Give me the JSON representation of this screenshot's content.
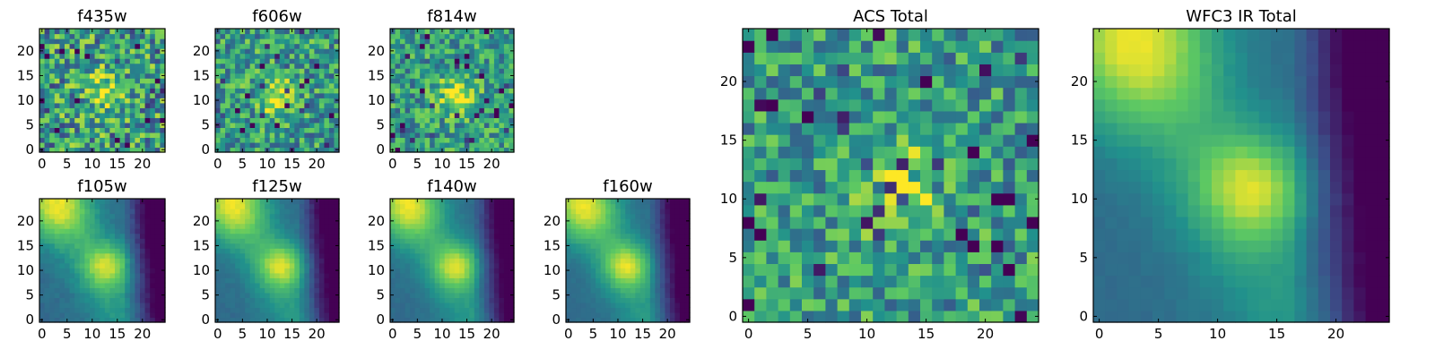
{
  "figure": {
    "colormap": "viridis",
    "colormap_stops": [
      "#440154",
      "#3b528b",
      "#21918c",
      "#5ec962",
      "#fde725"
    ]
  },
  "chart_data": [
    {
      "type": "heatmap",
      "title": "f435w",
      "size": 25,
      "xticks": [
        0,
        5,
        10,
        15,
        20
      ],
      "yticks": [
        0,
        5,
        10,
        15,
        20
      ],
      "xlim": [
        0,
        25
      ],
      "ylim": [
        0,
        25
      ],
      "pattern": "noisy",
      "peak": [
        12,
        12
      ],
      "noise": 0.32
    },
    {
      "type": "heatmap",
      "title": "f606w",
      "size": 25,
      "xticks": [
        0,
        5,
        10,
        15,
        20
      ],
      "yticks": [
        0,
        5,
        10,
        15,
        20
      ],
      "xlim": [
        0,
        25
      ],
      "ylim": [
        0,
        25
      ],
      "pattern": "noisy",
      "peak": [
        12,
        11
      ],
      "noise": 0.26
    },
    {
      "type": "heatmap",
      "title": "f814w",
      "size": 25,
      "xticks": [
        0,
        5,
        10,
        15,
        20
      ],
      "yticks": [
        0,
        5,
        10,
        15,
        20
      ],
      "xlim": [
        0,
        25
      ],
      "ylim": [
        0,
        25
      ],
      "pattern": "noisy",
      "peak": [
        13,
        11
      ],
      "noise": 0.24
    },
    {
      "type": "heatmap",
      "title": "f105w",
      "size": 25,
      "xticks": [
        0,
        5,
        10,
        15,
        20
      ],
      "yticks": [
        0,
        5,
        10,
        15,
        20
      ],
      "xlim": [
        0,
        25
      ],
      "ylim": [
        0,
        25
      ],
      "pattern": "smooth",
      "peak": [
        13,
        11
      ],
      "noise": 0.06
    },
    {
      "type": "heatmap",
      "title": "f125w",
      "size": 25,
      "xticks": [
        0,
        5,
        10,
        15,
        20
      ],
      "yticks": [
        0,
        5,
        10,
        15,
        20
      ],
      "xlim": [
        0,
        25
      ],
      "ylim": [
        0,
        25
      ],
      "pattern": "smooth",
      "peak": [
        13,
        11
      ],
      "noise": 0.05
    },
    {
      "type": "heatmap",
      "title": "f140w",
      "size": 25,
      "xticks": [
        0,
        5,
        10,
        15,
        20
      ],
      "yticks": [
        0,
        5,
        10,
        15,
        20
      ],
      "xlim": [
        0,
        25
      ],
      "ylim": [
        0,
        25
      ],
      "pattern": "smooth",
      "peak": [
        13,
        11
      ],
      "noise": 0.04
    },
    {
      "type": "heatmap",
      "title": "f160w",
      "size": 25,
      "xticks": [
        0,
        5,
        10,
        15,
        20
      ],
      "yticks": [
        0,
        5,
        10,
        15,
        20
      ],
      "xlim": [
        0,
        25
      ],
      "ylim": [
        0,
        25
      ],
      "pattern": "smooth",
      "peak": [
        12,
        11
      ],
      "noise": 0.04
    },
    {
      "type": "heatmap",
      "title": "ACS Total",
      "size": 25,
      "xticks": [
        0,
        5,
        10,
        15,
        20
      ],
      "yticks": [
        0,
        5,
        10,
        15,
        20
      ],
      "xlim": [
        0,
        25
      ],
      "ylim": [
        0,
        25
      ],
      "pattern": "noisy",
      "peak": [
        13,
        11
      ],
      "noise": 0.24
    },
    {
      "type": "heatmap",
      "title": "WFC3 IR Total",
      "size": 25,
      "xticks": [
        0,
        5,
        10,
        15,
        20
      ],
      "yticks": [
        0,
        5,
        10,
        15,
        20
      ],
      "xlim": [
        0,
        25
      ],
      "ylim": [
        0,
        25
      ],
      "pattern": "smooth",
      "peak": [
        13,
        11
      ],
      "noise": 0.03
    }
  ]
}
